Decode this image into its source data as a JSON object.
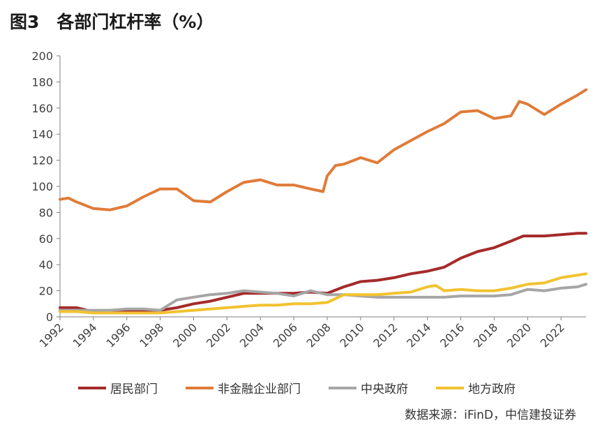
{
  "figure_title": "图3　各部门杠杆率（%）",
  "source_note": "数据来源：iFinD，中信建投证券",
  "chart_data": {
    "type": "line",
    "title": "图3　各部门杠杆率（%）",
    "xlabel": "",
    "ylabel": "",
    "ylim": [
      0,
      200
    ],
    "xlim": [
      1992,
      2023.5
    ],
    "y_ticks": [
      "0",
      "20",
      "40",
      "60",
      "80",
      "100",
      "120",
      "140",
      "160",
      "180",
      "200"
    ],
    "x_ticks": [
      "1992",
      "1994",
      "1996",
      "1998",
      "2000",
      "2002",
      "2004",
      "2006",
      "2008",
      "2010",
      "2012",
      "2014",
      "2016",
      "2018",
      "2020",
      "2022"
    ],
    "grid": false,
    "legend_position": "bottom",
    "series": [
      {
        "name": "居民部门",
        "color": "#A52A2A",
        "x": [
          1992,
          1993,
          1994,
          1995,
          1996,
          1997,
          1998,
          1999,
          2000,
          2001,
          2002,
          2003,
          2004,
          2005,
          2006,
          2007,
          2008,
          2009,
          2010,
          2011,
          2012,
          2013,
          2014,
          2015,
          2016,
          2017,
          2018,
          2019,
          2019.75,
          2020,
          2021,
          2022,
          2023,
          2023.5
        ],
        "y": [
          7,
          7,
          4,
          4,
          4,
          5,
          5,
          7,
          10,
          12,
          15,
          18,
          18,
          18,
          18,
          19,
          18,
          23,
          27,
          28,
          30,
          33,
          35,
          38,
          45,
          50,
          53,
          58,
          62,
          62,
          62,
          63,
          64,
          64
        ]
      },
      {
        "name": "非金融企业部门",
        "color": "#E07B39",
        "x": [
          1992,
          1992.5,
          1993,
          1994,
          1995,
          1996,
          1997,
          1998,
          1999,
          2000,
          2001,
          2002,
          2003,
          2004,
          2005,
          2006,
          2007,
          2007.75,
          2008,
          2008.5,
          2009,
          2010,
          2011,
          2012,
          2013,
          2014,
          2015,
          2016,
          2017,
          2018,
          2019,
          2019.5,
          2020,
          2021,
          2022,
          2023,
          2023.5
        ],
        "y": [
          90,
          91,
          88,
          83,
          82,
          85,
          92,
          98,
          98,
          89,
          88,
          96,
          103,
          105,
          101,
          101,
          98,
          96,
          108,
          116,
          117,
          122,
          118,
          128,
          135,
          142,
          148,
          157,
          158,
          152,
          154,
          165,
          163,
          155,
          163,
          170,
          174
        ]
      },
      {
        "name": "中央政府",
        "color": "#A6A6A6",
        "x": [
          1992,
          1993,
          1994,
          1995,
          1996,
          1997,
          1998,
          1999,
          2000,
          2001,
          2002,
          2003,
          2004,
          2005,
          2006,
          2007,
          2008,
          2009,
          2010,
          2011,
          2012,
          2013,
          2014,
          2015,
          2016,
          2017,
          2018,
          2019,
          2020,
          2021,
          2022,
          2023,
          2023.5
        ],
        "y": [
          5,
          5,
          5,
          5,
          6,
          6,
          5,
          13,
          15,
          17,
          18,
          20,
          19,
          18,
          16,
          20,
          17,
          17,
          16,
          15,
          15,
          15,
          15,
          15,
          16,
          16,
          16,
          17,
          21,
          20,
          22,
          23,
          25
        ]
      },
      {
        "name": "地方政府",
        "color": "#F2C230",
        "x": [
          1992,
          1993,
          1994,
          1995,
          1996,
          1997,
          1998,
          1999,
          2000,
          2001,
          2002,
          2003,
          2004,
          2005,
          2006,
          2007,
          2008,
          2009,
          2010,
          2011,
          2012,
          2013,
          2014,
          2014.5,
          2015,
          2016,
          2017,
          2018,
          2019,
          2020,
          2021,
          2022,
          2023,
          2023.5
        ],
        "y": [
          4,
          4,
          3,
          3,
          3,
          3,
          3,
          4,
          5,
          6,
          7,
          8,
          9,
          9,
          10,
          10,
          11,
          17,
          17,
          17,
          18,
          19,
          23,
          24,
          20,
          21,
          20,
          20,
          22,
          25,
          26,
          30,
          32,
          33
        ]
      }
    ]
  }
}
